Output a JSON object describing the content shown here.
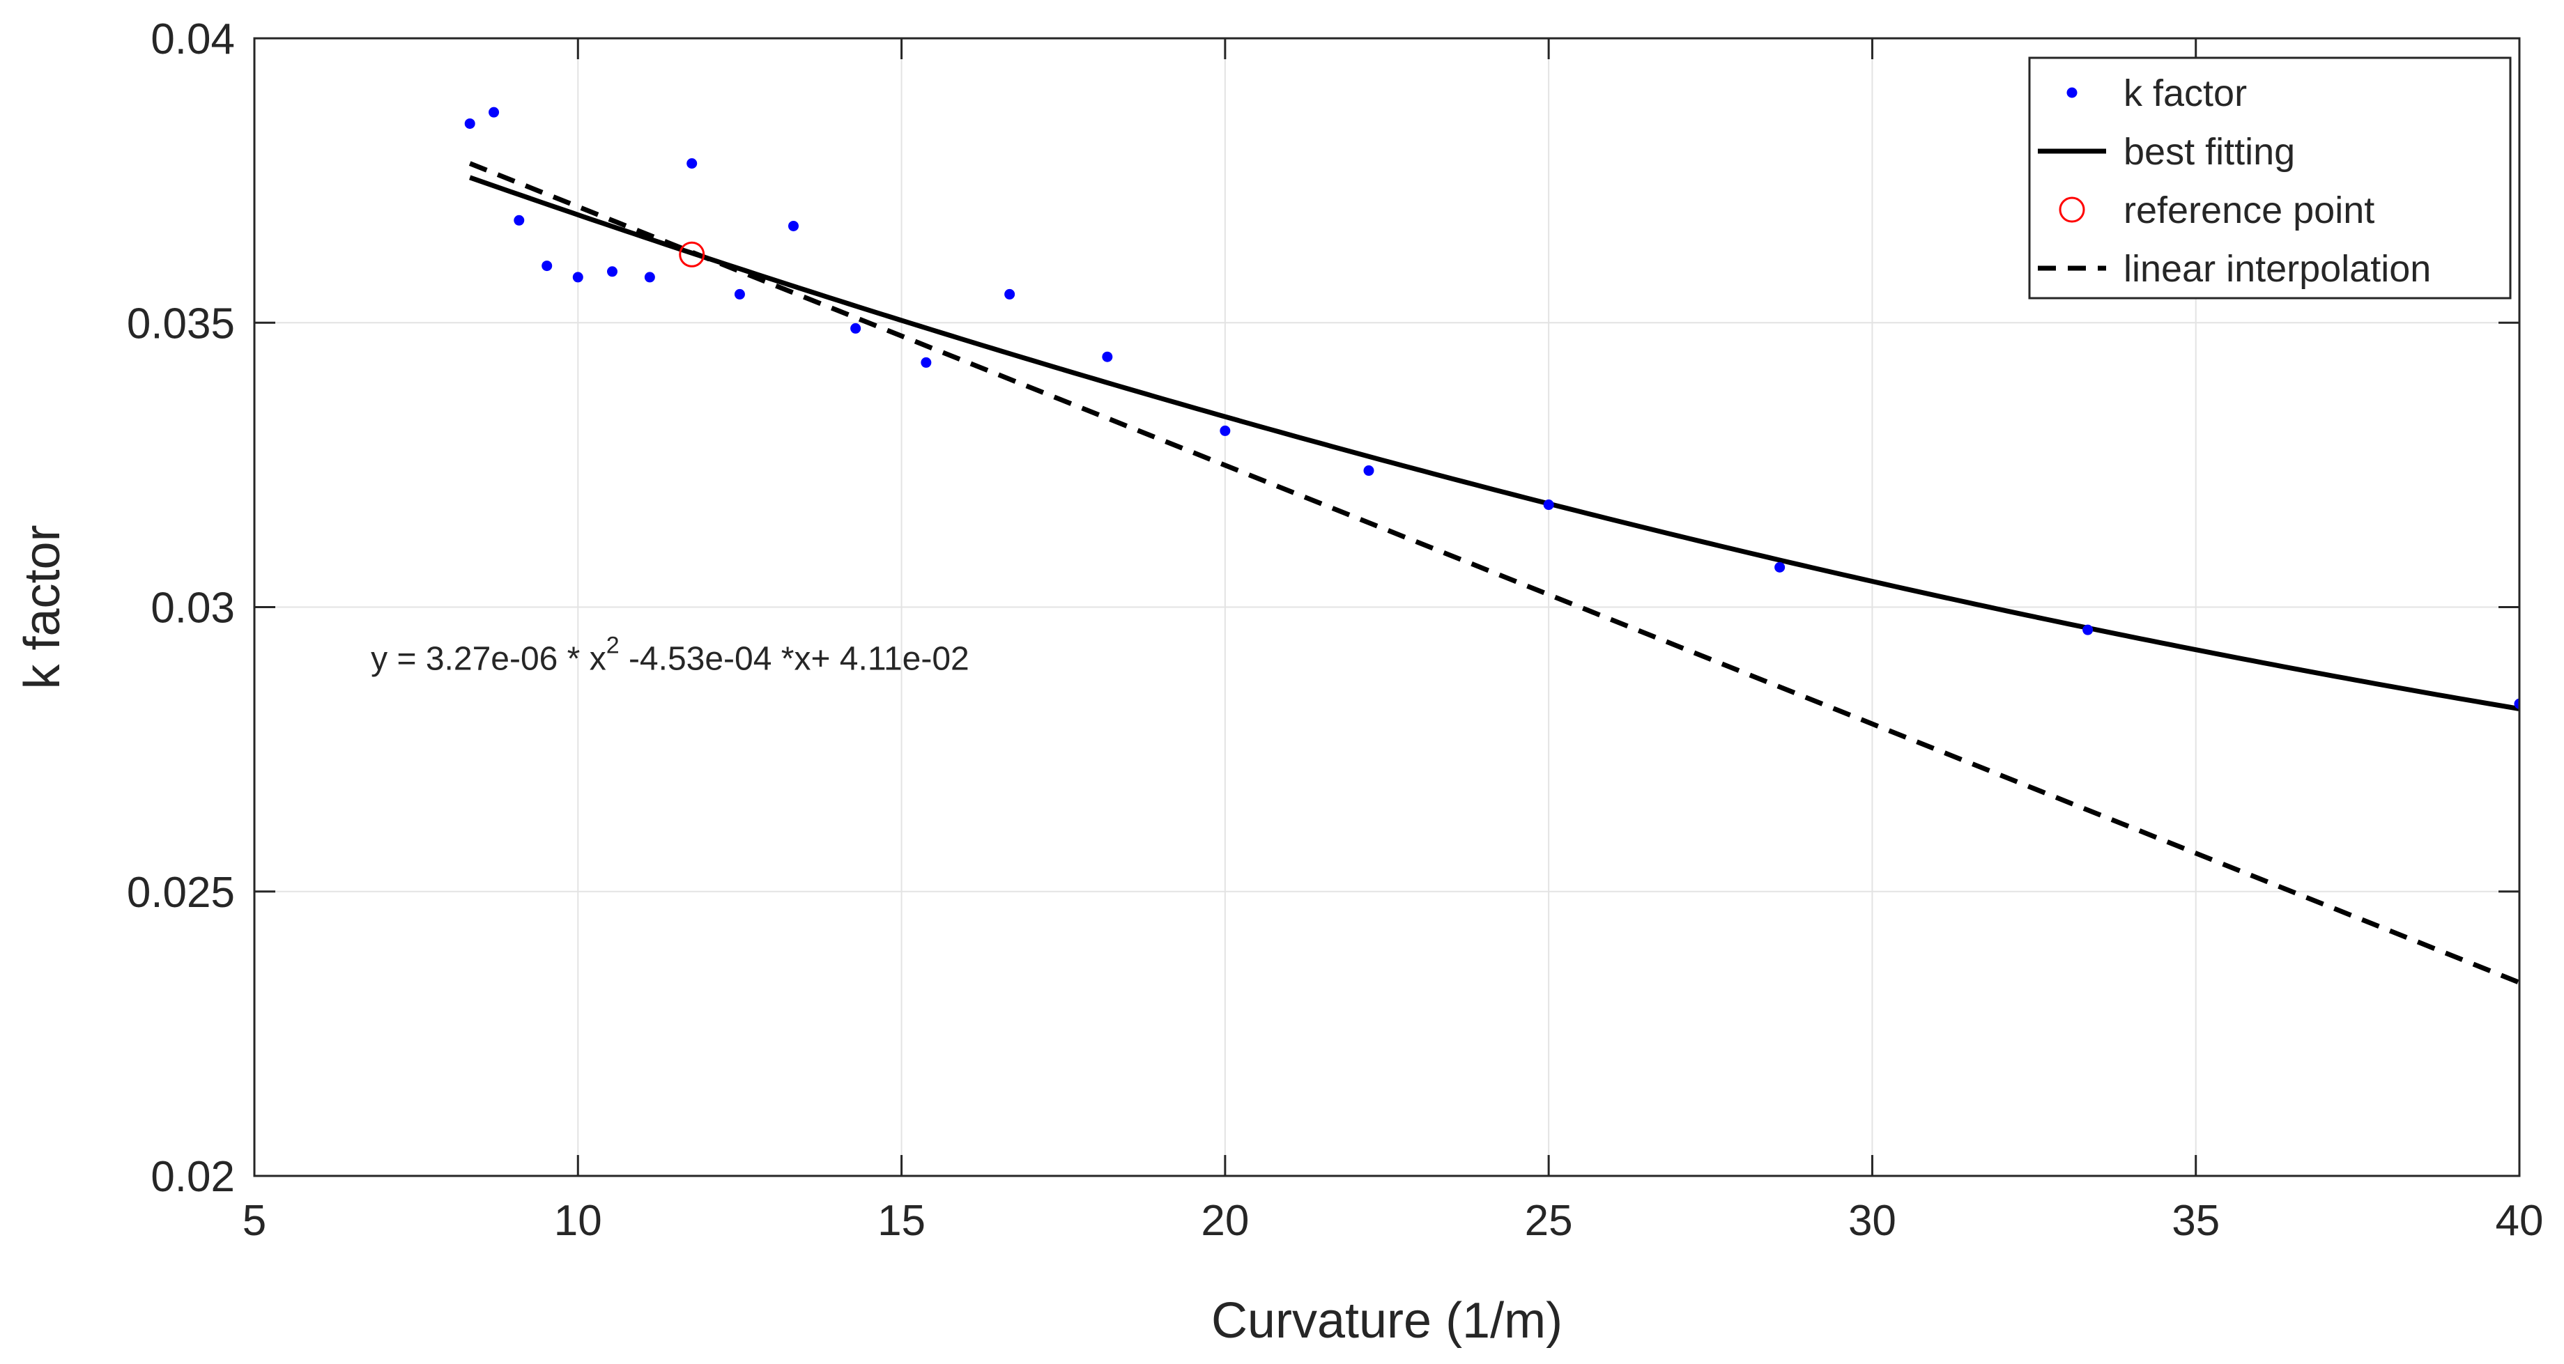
{
  "chart_data": {
    "type": "scatter",
    "title": "",
    "xlabel": "Curvature (1/m)",
    "ylabel": "k factor",
    "xlim": [
      5,
      40
    ],
    "ylim": [
      0.02,
      0.04
    ],
    "xticks": [
      5,
      10,
      15,
      20,
      25,
      30,
      35,
      40
    ],
    "xtick_labels": [
      "5",
      "10",
      "15",
      "20",
      "25",
      "30",
      "35",
      "40"
    ],
    "yticks": [
      0.02,
      0.025,
      0.03,
      0.035,
      0.04
    ],
    "ytick_labels": [
      "0.02",
      "0.025",
      "0.03",
      "0.035",
      "0.04"
    ],
    "grid": true,
    "legend_position": "top-right",
    "series": [
      {
        "name": "k factor",
        "kind": "markers",
        "color": "#0000ff",
        "x": [
          8.33,
          8.7,
          9.09,
          9.52,
          10.0,
          10.53,
          11.11,
          11.76,
          12.5,
          13.33,
          14.29,
          15.38,
          16.67,
          18.18,
          20.0,
          22.22,
          25.0,
          28.57,
          33.33,
          40.0
        ],
        "y": [
          0.0385,
          0.0387,
          0.0368,
          0.036,
          0.0358,
          0.0359,
          0.0358,
          0.0378,
          0.0355,
          0.0367,
          0.0349,
          0.0343,
          0.0355,
          0.0344,
          0.0331,
          0.0324,
          0.0318,
          0.0307,
          0.0296,
          0.0283
        ]
      },
      {
        "name": "best fitting",
        "kind": "curve",
        "color": "#000000",
        "style": "solid",
        "coefficients": [
          3.27e-06,
          -0.000453,
          0.0411
        ],
        "x_range": [
          8.33,
          40.0
        ]
      },
      {
        "name": "reference point",
        "kind": "open-circle",
        "color": "#ff0000",
        "x": [
          11.76
        ],
        "y": [
          0.0362
        ]
      },
      {
        "name": "linear interpolation",
        "kind": "line",
        "color": "#000000",
        "style": "dashed",
        "x": [
          8.33,
          40.0
        ],
        "y": [
          0.0378,
          0.0234
        ]
      }
    ],
    "annotation": {
      "prefix": "y = 3.27e-06 * x",
      "superscript": "2",
      "suffix": " -4.53e-04 *x+ 4.11e-02",
      "x": 6.8,
      "y": 0.0289
    }
  }
}
